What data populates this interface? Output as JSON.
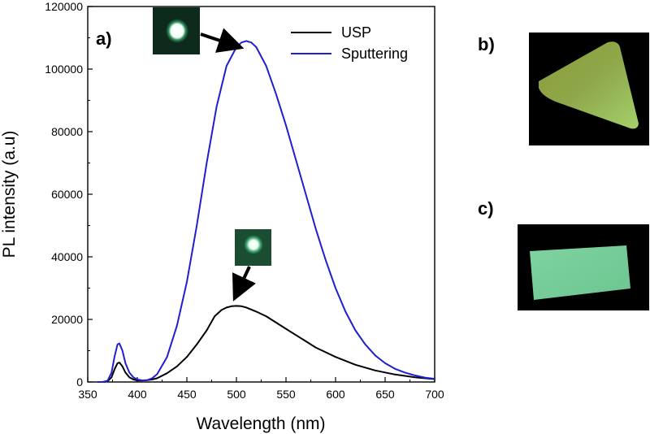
{
  "chart_data": {
    "type": "line",
    "title": "",
    "xlabel": "Wavelength (nm)",
    "ylabel": "PL intensity (a.u)",
    "xlim": [
      350,
      700
    ],
    "ylim": [
      0,
      120000
    ],
    "xticks": [
      350,
      400,
      450,
      500,
      550,
      600,
      650,
      700
    ],
    "yticks": [
      0,
      20000,
      40000,
      60000,
      80000,
      100000,
      120000
    ],
    "grid": false,
    "legend_position": "top-right",
    "series": [
      {
        "name": "USP",
        "color": "#000000",
        "x": [
          360,
          366,
          370,
          374,
          377,
          380,
          382,
          385,
          388,
          392,
          396,
          400,
          405,
          410,
          415,
          420,
          430,
          440,
          450,
          460,
          470,
          478,
          485,
          490,
          495,
          500,
          505,
          510,
          520,
          530,
          540,
          550,
          560,
          570,
          580,
          590,
          600,
          620,
          640,
          660,
          680,
          700
        ],
        "y": [
          0,
          0,
          200,
          1500,
          4000,
          6000,
          6200,
          5000,
          3000,
          1500,
          800,
          500,
          500,
          600,
          800,
          1200,
          2800,
          5000,
          8000,
          12000,
          16500,
          21000,
          23000,
          23800,
          24200,
          24300,
          24200,
          23800,
          22500,
          21000,
          19000,
          17000,
          15000,
          13000,
          11000,
          9500,
          8000,
          5500,
          3700,
          2400,
          1500,
          900
        ]
      },
      {
        "name": "Sputtering",
        "color": "#1f1fd0",
        "x": [
          360,
          365,
          370,
          374,
          377,
          380,
          382,
          385,
          388,
          392,
          396,
          400,
          405,
          410,
          415,
          420,
          430,
          440,
          450,
          460,
          470,
          480,
          490,
          500,
          505,
          510,
          515,
          520,
          530,
          540,
          550,
          560,
          570,
          580,
          590,
          600,
          610,
          620,
          630,
          640,
          650,
          660,
          670,
          680,
          690,
          700
        ],
        "y": [
          0,
          0,
          400,
          3000,
          8000,
          12000,
          12300,
          10000,
          6000,
          3000,
          1500,
          800,
          500,
          600,
          1200,
          2500,
          8000,
          18000,
          32000,
          50000,
          70000,
          88000,
          101000,
          107000,
          108500,
          109000,
          108500,
          107000,
          101000,
          92000,
          82000,
          71000,
          60000,
          49000,
          39000,
          30000,
          22500,
          16500,
          12000,
          8500,
          6000,
          4200,
          3000,
          2100,
          1400,
          1000
        ]
      }
    ]
  },
  "panels": {
    "a": "a)",
    "b": "b)",
    "c": "c)"
  }
}
